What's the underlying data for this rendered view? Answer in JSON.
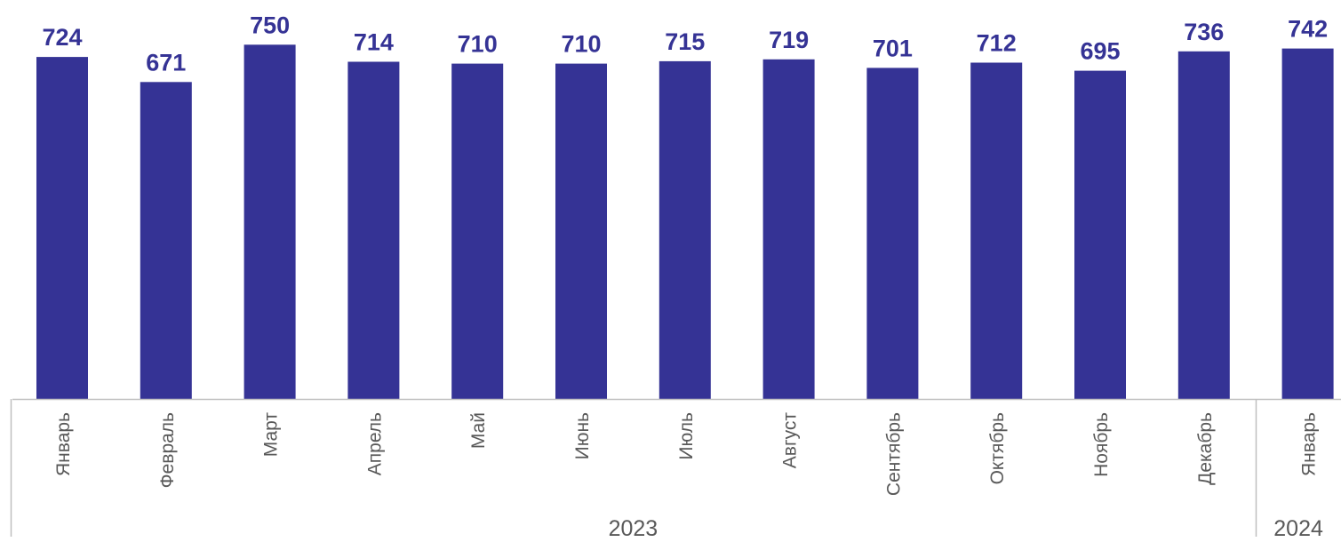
{
  "chart_data": {
    "type": "bar",
    "title": "",
    "xlabel": "",
    "ylabel": "",
    "categories": [
      "Январь",
      "Февраль",
      "Март",
      "Апрель",
      "Май",
      "Июнь",
      "Июль",
      "Август",
      "Сентябрь",
      "Октябрь",
      "Ноябрь",
      "Декабрь",
      "Январь"
    ],
    "values": [
      724,
      671,
      750,
      714,
      710,
      710,
      715,
      719,
      701,
      712,
      695,
      736,
      742
    ],
    "groups": [
      {
        "label": "2023",
        "count": 12
      },
      {
        "label": "2024",
        "count": 1
      }
    ],
    "ylim": [
      0,
      760
    ],
    "grid": false,
    "legend": "none",
    "colors": {
      "bar": "#353395",
      "value_label": "#353395",
      "axis": "#bfbfbf",
      "category_text": "#595959"
    }
  }
}
